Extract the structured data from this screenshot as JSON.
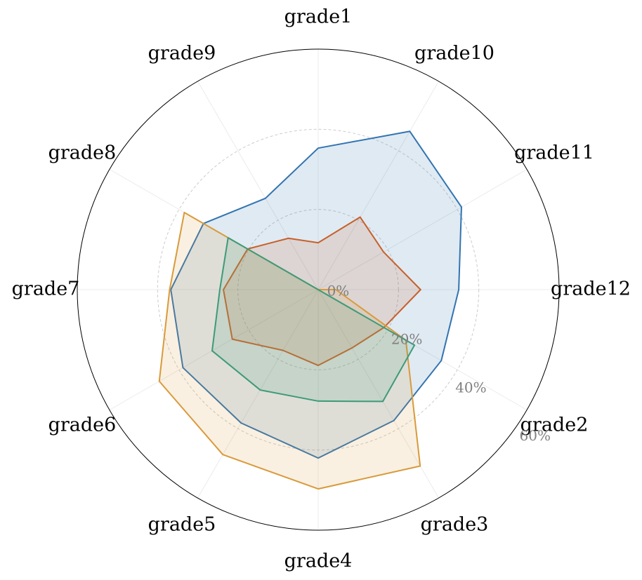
{
  "chart_data": {
    "type": "radar",
    "categories": [
      "grade1",
      "grade10",
      "grade11",
      "grade12",
      "grade2",
      "grade3",
      "grade4",
      "grade5",
      "grade6",
      "grade7",
      "grade8",
      "grade9"
    ],
    "series": [
      {
        "color": "#3274b0",
        "values": [
          35.3,
          45.6,
          41.2,
          35,
          35.4,
          37.7,
          42,
          38.4,
          38.9,
          36.7,
          33,
          26.3
        ]
      },
      {
        "color": "#c8602a",
        "values": [
          11.7,
          20.9,
          18.8,
          25.5,
          18.9,
          16.8,
          18.9,
          17.5,
          24.7,
          23.6,
          20.3,
          14.8
        ]
      },
      {
        "color": "#d99a3a",
        "values": [
          0,
          0,
          0,
          4.4,
          25.2,
          50.8,
          49.7,
          47.5,
          45.7,
          37,
          38.5,
          0
        ]
      },
      {
        "color": "#3e9a78",
        "values": [
          0,
          0,
          0,
          0,
          27.7,
          32.2,
          27.8,
          28.9,
          30.5,
          24.5,
          25.9,
          0
        ]
      }
    ],
    "rlim": [
      0,
      60
    ],
    "rticks": [
      {
        "value": 0,
        "label": "0%"
      },
      {
        "value": 20,
        "label": "20%"
      },
      {
        "value": 40,
        "label": "40%"
      },
      {
        "value": 60,
        "label": "60%"
      }
    ],
    "grid": true
  }
}
